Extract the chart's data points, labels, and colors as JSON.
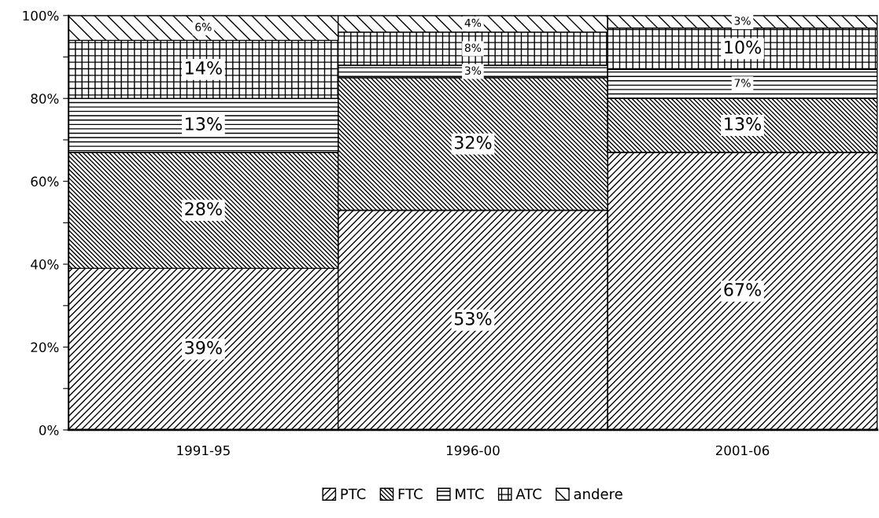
{
  "chart_data": {
    "type": "bar",
    "stacked": true,
    "categories": [
      "1991-95",
      "1996-00",
      "2001-06"
    ],
    "series": [
      {
        "name": "PTC",
        "color": "#000000",
        "values": [
          39,
          53,
          67
        ],
        "value_labels": [
          "39%",
          "53%",
          "67%"
        ]
      },
      {
        "name": "FTC",
        "color": "#000000",
        "values": [
          28,
          32,
          13
        ],
        "value_labels": [
          "28%",
          "32%",
          "13%"
        ]
      },
      {
        "name": "MTC",
        "color": "#000000",
        "values": [
          13,
          3,
          7
        ],
        "value_labels": [
          "13%",
          "3%",
          "7%"
        ]
      },
      {
        "name": "ATC",
        "color": "#000000",
        "values": [
          14,
          8,
          10
        ],
        "value_labels": [
          "14%",
          "8%",
          "10%"
        ]
      },
      {
        "name": "andere",
        "color": "#000000",
        "values": [
          6,
          4,
          3
        ],
        "value_labels": [
          "6%",
          "4%",
          "3%"
        ]
      }
    ],
    "ylim": [
      0,
      100
    ],
    "yticks": [
      {
        "value": 0,
        "label": "0%"
      },
      {
        "value": 10,
        "label": null
      },
      {
        "value": 20,
        "label": "20%"
      },
      {
        "value": 30,
        "label": null
      },
      {
        "value": 40,
        "label": "40%"
      },
      {
        "value": 50,
        "label": null
      },
      {
        "value": 60,
        "label": "60%"
      },
      {
        "value": 70,
        "label": null
      },
      {
        "value": 80,
        "label": "80%"
      },
      {
        "value": 90,
        "label": null
      },
      {
        "value": 100,
        "label": "100%"
      }
    ],
    "grid": false,
    "legend": "bottom"
  }
}
